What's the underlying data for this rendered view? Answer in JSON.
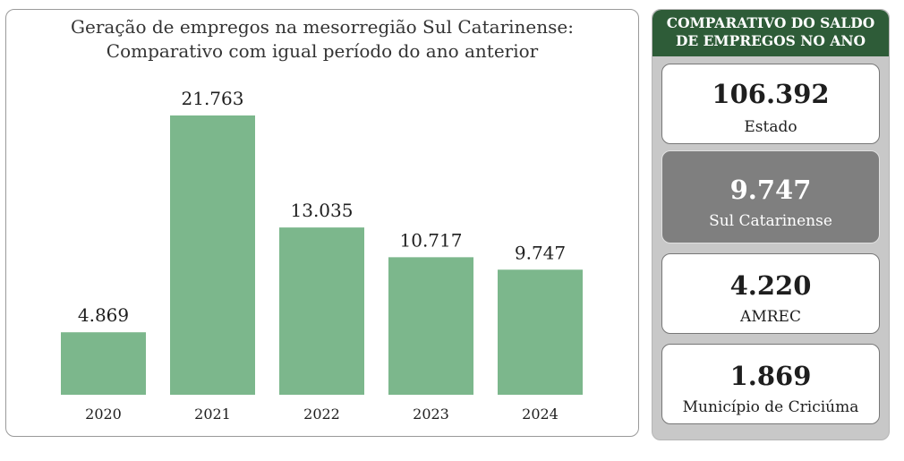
{
  "chart_data": {
    "type": "bar",
    "title": "Geração de empregos na mesorregião Sul Catarinense:",
    "subtitle": "Comparativo com igual período do ano anterior",
    "categories": [
      "2020",
      "2021",
      "2022",
      "2023",
      "2024"
    ],
    "values": [
      4869,
      21763,
      13035,
      10717,
      9747
    ],
    "value_labels": [
      "4.869",
      "21.763",
      "13.035",
      "10.717",
      "9.747"
    ],
    "ylim": [
      0,
      21763
    ],
    "bar_color": "#7cb78c",
    "grid": false,
    "legend": "none"
  },
  "side_panel": {
    "header_line1": "COMPARATIVO DO SALDO",
    "header_line2": "DE EMPREGOS NO ANO",
    "header_color": "#2e5c38",
    "cards": [
      {
        "value": "106.392",
        "label": "Estado"
      },
      {
        "value": "9.747",
        "label": "Sul Catarinense"
      },
      {
        "value": "4.220",
        "label": "AMREC"
      },
      {
        "value": "1.869",
        "label": "Município de Criciúma"
      }
    ]
  }
}
